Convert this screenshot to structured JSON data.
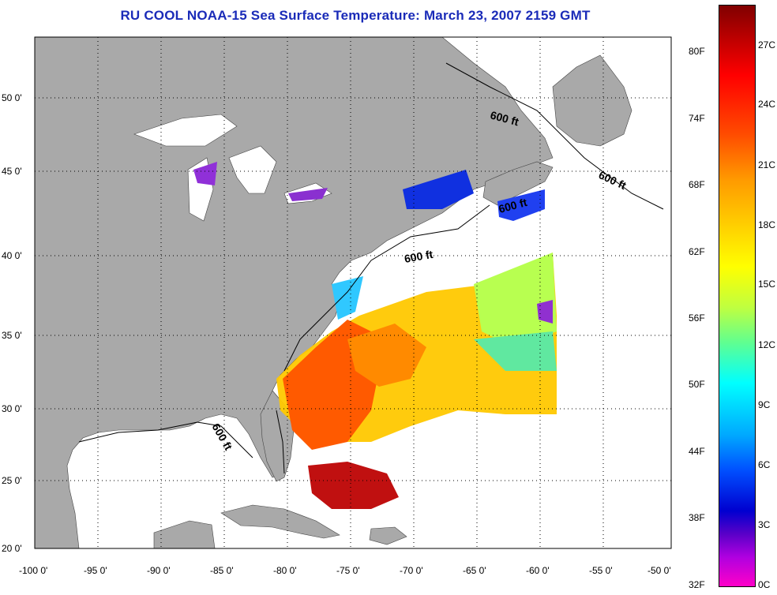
{
  "title": "RU COOL  NOAA-15  Sea Surface Temperature:  March 23, 2007 2159 GMT",
  "axes": {
    "lat_labels": [
      "50 0'",
      "45 0'",
      "40 0'",
      "35 0'",
      "30 0'",
      "25 0'",
      "20 0'"
    ],
    "lon_labels": [
      "-100 0'",
      "-95 0'",
      "-90 0'",
      "-85 0'",
      "-80 0'",
      "-75 0'",
      "-70 0'",
      "-65 0'",
      "-60 0'",
      "-55 0'",
      "-50 0'"
    ]
  },
  "contour_labels": [
    "600 ft",
    "600 ft",
    "600 ft",
    "600 ft",
    "600 ft"
  ],
  "colorbar": {
    "fahrenheit": [
      "80F",
      "74F",
      "68F",
      "62F",
      "56F",
      "50F",
      "44F",
      "38F",
      "32F"
    ],
    "celsius": [
      "27C",
      "24C",
      "21C",
      "18C",
      "15C",
      "12C",
      "9C",
      "6C",
      "3C",
      "0C"
    ]
  },
  "colors": {
    "land": "#a9a9a9",
    "ocean": "#ffffff",
    "title": "#1a2bb8"
  }
}
